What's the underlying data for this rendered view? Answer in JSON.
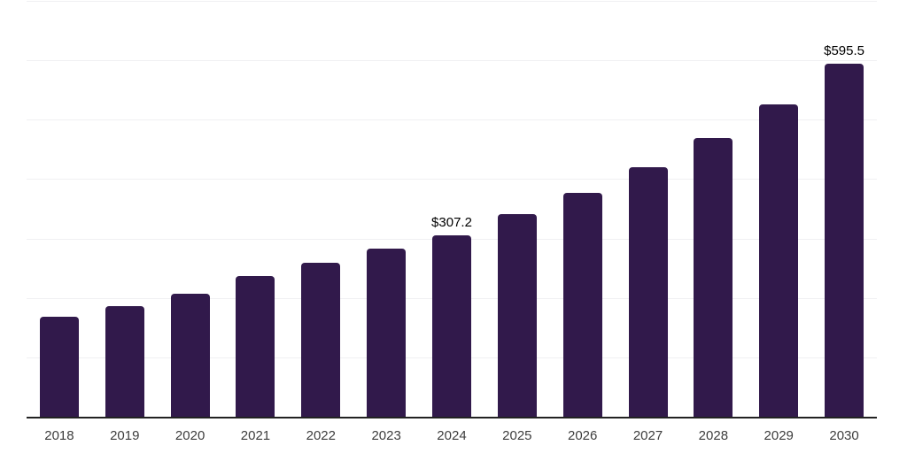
{
  "chart_data": {
    "type": "bar",
    "title": "",
    "xlabel": "",
    "ylabel": "",
    "categories": [
      "2018",
      "2019",
      "2020",
      "2021",
      "2022",
      "2023",
      "2024",
      "2025",
      "2026",
      "2027",
      "2028",
      "2029",
      "2030"
    ],
    "values": [
      170,
      187,
      209,
      238,
      260,
      284,
      307.2,
      342,
      379,
      422,
      471,
      527,
      595.5
    ],
    "data_labels": [
      "",
      "",
      "",
      "",
      "",
      "",
      "$307.2",
      "",
      "",
      "",
      "",
      "",
      "$595.5"
    ],
    "ylim": [
      0,
      700
    ],
    "grid_step": 100,
    "grid": "horizontal-only",
    "y_tick_labels_visible": false,
    "legend": "none",
    "colors": {
      "bar": "#31194B",
      "gridline": "#F0F0F2",
      "axis_line": "#222222",
      "tick_label": "#3D3D3D",
      "data_label": "#000000",
      "background": "#FFFFFF"
    }
  }
}
